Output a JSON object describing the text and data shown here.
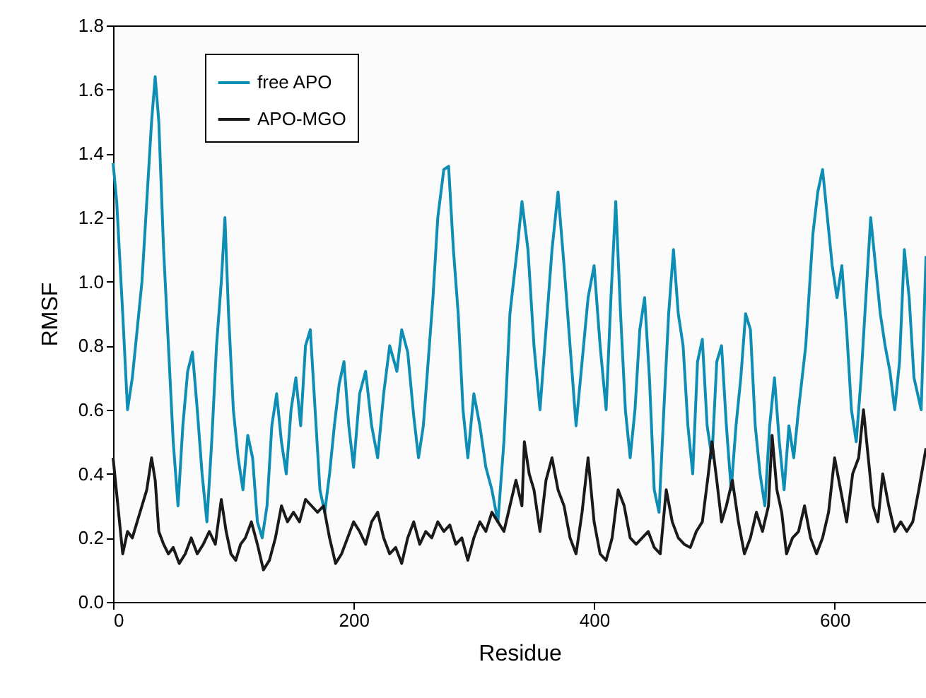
{
  "chart_data": {
    "type": "line",
    "xlabel": "Residue",
    "ylabel": "RMSF",
    "xlim": [
      0,
      676
    ],
    "xticks": [
      0,
      200,
      400,
      600
    ],
    "ylim": [
      0,
      1.8
    ],
    "yticks": [
      {
        "value": 0,
        "label": "0.0"
      },
      0.2,
      0.4,
      0.6,
      0.8,
      {
        "value": 1,
        "label": "1.0"
      },
      1.2,
      1.4,
      1.6,
      1.8
    ],
    "grid": false,
    "legend": "top left",
    "marker": "none",
    "line_style": "solid",
    "series": [
      {
        "name": "free APO",
        "color": "#0e8eb4",
        "x": [
          0,
          3,
          8,
          12,
          16,
          20,
          24,
          28,
          32,
          35,
          38,
          42,
          46,
          50,
          54,
          58,
          62,
          66,
          70,
          74,
          78,
          82,
          86,
          90,
          93,
          96,
          100,
          104,
          108,
          112,
          116,
          120,
          124,
          128,
          132,
          136,
          140,
          144,
          148,
          152,
          156,
          160,
          164,
          168,
          172,
          176,
          180,
          184,
          188,
          192,
          196,
          200,
          205,
          210,
          215,
          220,
          225,
          230,
          236,
          240,
          245,
          250,
          254,
          258,
          262,
          266,
          270,
          275,
          279,
          283,
          287,
          291,
          295,
          300,
          305,
          310,
          315,
          320,
          325,
          330,
          336,
          340,
          345,
          350,
          355,
          360,
          365,
          370,
          375,
          380,
          385,
          390,
          395,
          400,
          405,
          410,
          414,
          418,
          422,
          426,
          430,
          434,
          438,
          442,
          446,
          450,
          454,
          458,
          462,
          466,
          470,
          474,
          478,
          482,
          486,
          490,
          494,
          498,
          502,
          506,
          510,
          514,
          518,
          522,
          526,
          530,
          534,
          538,
          542,
          546,
          550,
          554,
          558,
          562,
          566,
          570,
          576,
          582,
          586,
          590,
          594,
          598,
          602,
          606,
          610,
          614,
          618,
          622,
          626,
          630,
          634,
          638,
          642,
          646,
          650,
          654,
          658,
          662,
          666,
          672,
          676
        ],
        "values": [
          1.37,
          1.25,
          0.9,
          0.6,
          0.7,
          0.85,
          1.0,
          1.25,
          1.5,
          1.64,
          1.5,
          1.1,
          0.8,
          0.5,
          0.3,
          0.55,
          0.72,
          0.78,
          0.6,
          0.4,
          0.25,
          0.5,
          0.8,
          1.0,
          1.2,
          0.9,
          0.6,
          0.45,
          0.35,
          0.52,
          0.45,
          0.25,
          0.2,
          0.3,
          0.55,
          0.65,
          0.5,
          0.4,
          0.6,
          0.7,
          0.55,
          0.8,
          0.85,
          0.6,
          0.35,
          0.28,
          0.4,
          0.55,
          0.68,
          0.75,
          0.55,
          0.42,
          0.65,
          0.72,
          0.55,
          0.45,
          0.65,
          0.8,
          0.72,
          0.85,
          0.78,
          0.58,
          0.45,
          0.55,
          0.75,
          0.95,
          1.2,
          1.35,
          1.36,
          1.1,
          0.9,
          0.6,
          0.45,
          0.65,
          0.55,
          0.42,
          0.35,
          0.25,
          0.5,
          0.9,
          1.1,
          1.25,
          1.1,
          0.8,
          0.6,
          0.85,
          1.1,
          1.28,
          1.05,
          0.8,
          0.55,
          0.75,
          0.95,
          1.05,
          0.8,
          0.6,
          0.95,
          1.25,
          0.9,
          0.6,
          0.45,
          0.6,
          0.85,
          0.95,
          0.7,
          0.35,
          0.28,
          0.6,
          0.9,
          1.1,
          0.9,
          0.8,
          0.55,
          0.4,
          0.75,
          0.82,
          0.55,
          0.45,
          0.75,
          0.8,
          0.55,
          0.35,
          0.55,
          0.7,
          0.9,
          0.85,
          0.55,
          0.4,
          0.3,
          0.55,
          0.7,
          0.5,
          0.35,
          0.55,
          0.45,
          0.6,
          0.8,
          1.15,
          1.28,
          1.35,
          1.2,
          1.05,
          0.95,
          1.05,
          0.85,
          0.6,
          0.5,
          0.7,
          0.95,
          1.2,
          1.05,
          0.9,
          0.8,
          0.72,
          0.6,
          0.75,
          1.1,
          0.95,
          0.7,
          0.6,
          1.08
        ]
      },
      {
        "name": "APO-MGO",
        "color": "#1a1a1a",
        "x": [
          0,
          4,
          8,
          12,
          16,
          20,
          24,
          28,
          32,
          35,
          38,
          42,
          46,
          50,
          55,
          60,
          65,
          70,
          75,
          80,
          85,
          90,
          94,
          98,
          102,
          106,
          110,
          115,
          120,
          125,
          130,
          135,
          140,
          145,
          150,
          155,
          160,
          165,
          170,
          175,
          180,
          185,
          190,
          195,
          200,
          205,
          210,
          215,
          220,
          225,
          230,
          235,
          240,
          245,
          250,
          255,
          260,
          265,
          270,
          275,
          280,
          285,
          290,
          295,
          300,
          305,
          310,
          315,
          320,
          325,
          330,
          335,
          340,
          342,
          346,
          350,
          355,
          360,
          365,
          370,
          375,
          380,
          385,
          390,
          395,
          400,
          405,
          410,
          415,
          420,
          425,
          430,
          435,
          440,
          445,
          450,
          455,
          460,
          465,
          470,
          475,
          480,
          485,
          490,
          495,
          498,
          502,
          506,
          510,
          515,
          520,
          525,
          530,
          535,
          540,
          545,
          548,
          552,
          556,
          560,
          565,
          570,
          575,
          580,
          585,
          590,
          595,
          600,
          605,
          610,
          615,
          620,
          624,
          628,
          632,
          636,
          640,
          645,
          650,
          655,
          660,
          665,
          670,
          676
        ],
        "values": [
          0.45,
          0.3,
          0.15,
          0.22,
          0.2,
          0.25,
          0.3,
          0.35,
          0.45,
          0.38,
          0.22,
          0.18,
          0.15,
          0.17,
          0.12,
          0.15,
          0.2,
          0.15,
          0.18,
          0.22,
          0.18,
          0.32,
          0.22,
          0.15,
          0.13,
          0.18,
          0.2,
          0.25,
          0.18,
          0.1,
          0.13,
          0.2,
          0.3,
          0.25,
          0.28,
          0.25,
          0.32,
          0.3,
          0.28,
          0.3,
          0.2,
          0.12,
          0.15,
          0.2,
          0.25,
          0.22,
          0.18,
          0.25,
          0.28,
          0.2,
          0.15,
          0.17,
          0.12,
          0.2,
          0.25,
          0.18,
          0.22,
          0.2,
          0.25,
          0.22,
          0.24,
          0.18,
          0.2,
          0.13,
          0.2,
          0.25,
          0.22,
          0.28,
          0.25,
          0.22,
          0.3,
          0.38,
          0.3,
          0.5,
          0.4,
          0.35,
          0.22,
          0.38,
          0.45,
          0.35,
          0.3,
          0.2,
          0.15,
          0.28,
          0.45,
          0.25,
          0.15,
          0.13,
          0.2,
          0.35,
          0.3,
          0.2,
          0.18,
          0.2,
          0.22,
          0.17,
          0.15,
          0.35,
          0.25,
          0.2,
          0.18,
          0.17,
          0.22,
          0.25,
          0.4,
          0.5,
          0.38,
          0.25,
          0.3,
          0.38,
          0.25,
          0.15,
          0.2,
          0.28,
          0.22,
          0.3,
          0.52,
          0.35,
          0.28,
          0.15,
          0.2,
          0.22,
          0.3,
          0.2,
          0.15,
          0.2,
          0.28,
          0.45,
          0.35,
          0.25,
          0.4,
          0.45,
          0.6,
          0.45,
          0.3,
          0.25,
          0.4,
          0.3,
          0.22,
          0.25,
          0.22,
          0.25,
          0.35,
          0.48
        ]
      }
    ]
  }
}
